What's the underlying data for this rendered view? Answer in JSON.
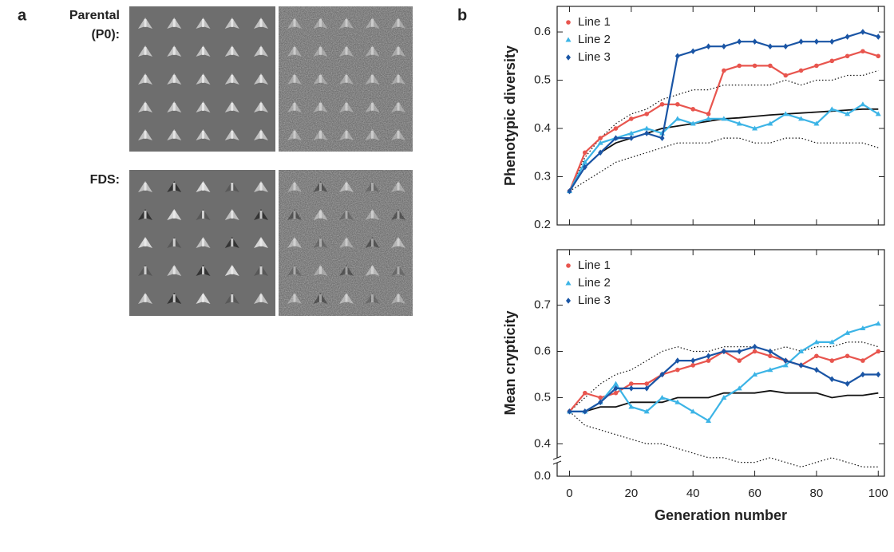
{
  "panel_a": {
    "label": "a",
    "rows": [
      {
        "lines": [
          "Parental",
          "(P0):"
        ]
      },
      {
        "lines": [
          "FDS:"
        ]
      }
    ]
  },
  "panel_b": {
    "label": "b"
  },
  "chart_data": [
    {
      "type": "line",
      "ylabel": "Phenotypic diversity",
      "x": [
        0,
        5,
        10,
        15,
        20,
        25,
        30,
        35,
        40,
        45,
        50,
        55,
        60,
        65,
        70,
        75,
        80,
        85,
        90,
        95,
        100
      ],
      "xlim": [
        -4,
        102
      ],
      "xticks": [
        0,
        20,
        40,
        60,
        80,
        100
      ],
      "show_xtick_labels": false,
      "ylim": [
        0.2,
        0.653
      ],
      "yticks": [
        {
          "value": 0.2,
          "label": "0.2"
        },
        0.3,
        0.4,
        0.5,
        0.6
      ],
      "legend": "upper left",
      "series": [
        {
          "name": "Line 1",
          "color": "#e8554e",
          "marker": "circle",
          "values": [
            0.27,
            0.35,
            0.38,
            0.4,
            0.42,
            0.43,
            0.45,
            0.45,
            0.44,
            0.43,
            0.52,
            0.53,
            0.53,
            0.53,
            0.51,
            0.52,
            0.53,
            0.54,
            0.55,
            0.56,
            0.55
          ]
        },
        {
          "name": "Line 2",
          "color": "#3cb4e6",
          "marker": "triangle",
          "values": [
            0.27,
            0.33,
            0.37,
            0.38,
            0.39,
            0.4,
            0.39,
            0.42,
            0.41,
            0.42,
            0.42,
            0.41,
            0.4,
            0.41,
            0.43,
            0.42,
            0.41,
            0.44,
            0.43,
            0.45,
            0.43
          ]
        },
        {
          "name": "Line 3",
          "color": "#1a55a5",
          "marker": "diamond",
          "values": [
            0.27,
            0.32,
            0.35,
            0.38,
            0.38,
            0.39,
            0.38,
            0.55,
            0.56,
            0.57,
            0.57,
            0.58,
            0.58,
            0.57,
            0.57,
            0.58,
            0.58,
            0.58,
            0.59,
            0.6,
            0.59
          ]
        },
        {
          "color": "#111111",
          "style": "solid",
          "values": [
            0.27,
            0.32,
            0.35,
            0.37,
            0.38,
            0.39,
            0.4,
            0.405,
            0.41,
            0.415,
            0.42,
            0.422,
            0.425,
            0.428,
            0.43,
            0.432,
            0.434,
            0.436,
            0.438,
            0.44,
            0.44
          ]
        },
        {
          "color": "#111111",
          "style": "dotted",
          "values": [
            0.27,
            0.34,
            0.38,
            0.41,
            0.43,
            0.44,
            0.46,
            0.47,
            0.48,
            0.48,
            0.49,
            0.49,
            0.49,
            0.49,
            0.5,
            0.49,
            0.5,
            0.5,
            0.51,
            0.51,
            0.52
          ]
        },
        {
          "color": "#111111",
          "style": "dotted",
          "values": [
            0.27,
            0.29,
            0.31,
            0.33,
            0.34,
            0.35,
            0.36,
            0.37,
            0.37,
            0.37,
            0.38,
            0.38,
            0.37,
            0.37,
            0.38,
            0.38,
            0.37,
            0.37,
            0.37,
            0.37,
            0.36
          ]
        }
      ]
    },
    {
      "type": "line",
      "ylabel": "Mean crypticity",
      "xlabel": "Generation number",
      "x": [
        0,
        5,
        10,
        15,
        20,
        25,
        30,
        35,
        40,
        45,
        50,
        55,
        60,
        65,
        70,
        75,
        80,
        85,
        90,
        95,
        100
      ],
      "xlim": [
        -4,
        102
      ],
      "xticks": [
        0,
        20,
        40,
        60,
        80,
        100
      ],
      "show_xtick_labels": true,
      "ylim": [
        0.33,
        0.82
      ],
      "ybreak": true,
      "yticks": [
        {
          "value": 0,
          "label": "0.0"
        },
        0.4,
        0.5,
        0.6,
        0.7
      ],
      "legend": "upper left",
      "series": [
        {
          "name": "Line 1",
          "color": "#e8554e",
          "marker": "circle",
          "values": [
            0.47,
            0.51,
            0.5,
            0.51,
            0.53,
            0.53,
            0.55,
            0.56,
            0.57,
            0.58,
            0.6,
            0.58,
            0.6,
            0.59,
            0.58,
            0.57,
            0.59,
            0.58,
            0.59,
            0.58,
            0.6
          ]
        },
        {
          "name": "Line 2",
          "color": "#3cb4e6",
          "marker": "triangle",
          "values": [
            0.47,
            0.47,
            0.49,
            0.53,
            0.48,
            0.47,
            0.5,
            0.49,
            0.47,
            0.45,
            0.5,
            0.52,
            0.55,
            0.56,
            0.57,
            0.6,
            0.62,
            0.62,
            0.64,
            0.65,
            0.66
          ]
        },
        {
          "name": "Line 3",
          "color": "#1a55a5",
          "marker": "diamond",
          "values": [
            0.47,
            0.47,
            0.49,
            0.52,
            0.52,
            0.52,
            0.55,
            0.58,
            0.58,
            0.59,
            0.6,
            0.6,
            0.61,
            0.6,
            0.58,
            0.57,
            0.56,
            0.54,
            0.53,
            0.55,
            0.55
          ]
        },
        {
          "color": "#111111",
          "style": "solid",
          "values": [
            0.47,
            0.47,
            0.48,
            0.48,
            0.49,
            0.49,
            0.49,
            0.5,
            0.5,
            0.5,
            0.51,
            0.51,
            0.51,
            0.515,
            0.51,
            0.51,
            0.51,
            0.5,
            0.505,
            0.505,
            0.51
          ]
        },
        {
          "color": "#111111",
          "style": "dotted",
          "values": [
            0.47,
            0.5,
            0.53,
            0.55,
            0.56,
            0.58,
            0.6,
            0.61,
            0.6,
            0.6,
            0.61,
            0.61,
            0.61,
            0.6,
            0.61,
            0.6,
            0.61,
            0.61,
            0.62,
            0.62,
            0.61
          ]
        },
        {
          "color": "#111111",
          "style": "dotted",
          "values": [
            0.47,
            0.44,
            0.43,
            0.42,
            0.41,
            0.4,
            0.4,
            0.39,
            0.38,
            0.37,
            0.37,
            0.36,
            0.36,
            0.37,
            0.36,
            0.35,
            0.36,
            0.37,
            0.36,
            0.35,
            0.35
          ]
        }
      ]
    }
  ]
}
